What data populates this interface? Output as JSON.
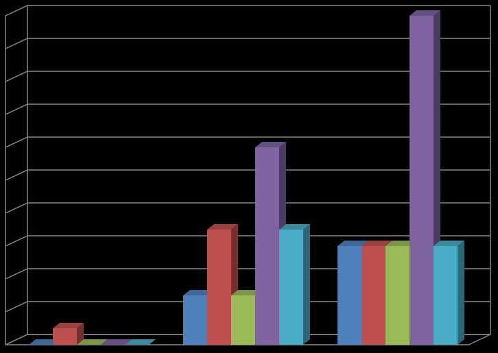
{
  "chart_data": {
    "type": "bar3d",
    "categories": [
      null,
      null,
      null
    ],
    "series": [
      {
        "color": "#4f81bd",
        "values": [
          0,
          1.5,
          3
        ]
      },
      {
        "color": "#c0504d",
        "values": [
          0.5,
          3.5,
          3
        ]
      },
      {
        "color": "#9bbb59",
        "values": [
          0,
          1.5,
          3
        ]
      },
      {
        "color": "#8064a2",
        "values": [
          0,
          6,
          10
        ]
      },
      {
        "color": "#4bacc6",
        "values": [
          0,
          3.5,
          3
        ]
      }
    ],
    "ylim": [
      0,
      10
    ],
    "yticks": [
      0,
      1,
      2,
      3,
      4,
      5,
      6,
      7,
      8,
      9,
      10
    ],
    "grid": true
  }
}
